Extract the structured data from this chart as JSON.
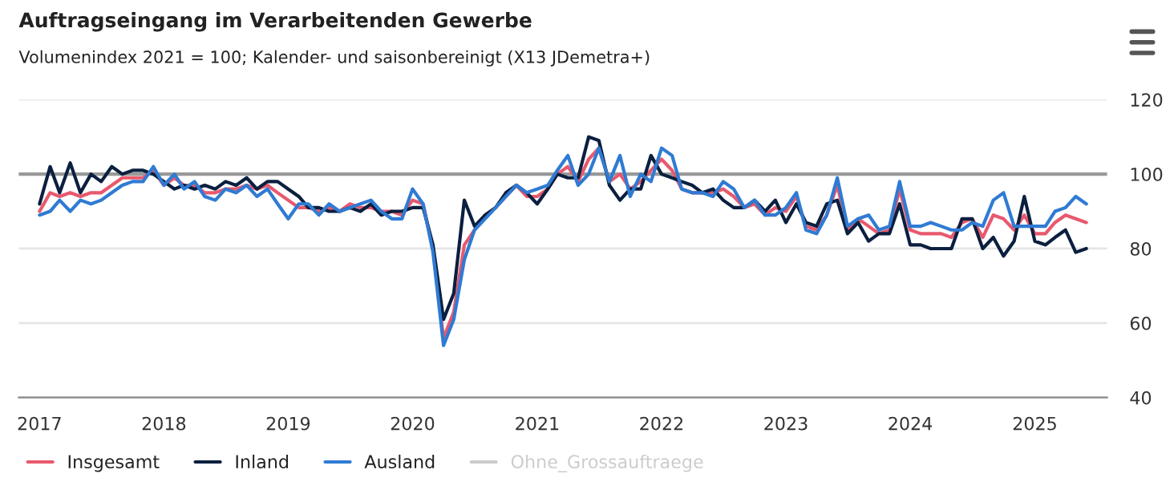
{
  "chart_data": {
    "type": "line",
    "title": "Auftragseingang im Verarbeitenden Gewerbe",
    "subtitle": "Volumenindex 2021 = 100; Kalender- und saisonbereinigt (X13 JDemetra+)",
    "x": [
      "2017-01",
      "2017-02",
      "2017-03",
      "2017-04",
      "2017-05",
      "2017-06",
      "2017-07",
      "2017-08",
      "2017-09",
      "2017-10",
      "2017-11",
      "2017-12",
      "2018-01",
      "2018-02",
      "2018-03",
      "2018-04",
      "2018-05",
      "2018-06",
      "2018-07",
      "2018-08",
      "2018-09",
      "2018-10",
      "2018-11",
      "2018-12",
      "2019-01",
      "2019-02",
      "2019-03",
      "2019-04",
      "2019-05",
      "2019-06",
      "2019-07",
      "2019-08",
      "2019-09",
      "2019-10",
      "2019-11",
      "2019-12",
      "2020-01",
      "2020-02",
      "2020-03",
      "2020-04",
      "2020-05",
      "2020-06",
      "2020-07",
      "2020-08",
      "2020-09",
      "2020-10",
      "2020-11",
      "2020-12",
      "2021-01",
      "2021-02",
      "2021-03",
      "2021-04",
      "2021-05",
      "2021-06",
      "2021-07",
      "2021-08",
      "2021-09",
      "2021-10",
      "2021-11",
      "2021-12",
      "2022-01",
      "2022-02",
      "2022-03",
      "2022-04",
      "2022-05",
      "2022-06",
      "2022-07",
      "2022-08",
      "2022-09",
      "2022-10",
      "2022-11",
      "2022-12",
      "2023-01",
      "2023-02",
      "2023-03",
      "2023-04",
      "2023-05",
      "2023-06",
      "2023-07",
      "2023-08",
      "2023-09",
      "2023-10",
      "2023-11",
      "2023-12",
      "2024-01",
      "2024-02",
      "2024-03",
      "2024-04",
      "2024-05",
      "2024-06",
      "2024-07",
      "2024-08",
      "2024-09",
      "2024-10",
      "2024-11",
      "2024-12",
      "2025-01",
      "2025-02",
      "2025-03",
      "2025-04",
      "2025-05",
      "2025-06"
    ],
    "xlim": [
      "2016-11",
      "2025-08"
    ],
    "xticks": [
      {
        "value": "2017-01",
        "label": "2017"
      },
      {
        "value": "2018-01",
        "label": "2018"
      },
      {
        "value": "2019-01",
        "label": "2019"
      },
      {
        "value": "2020-01",
        "label": "2020"
      },
      {
        "value": "2021-01",
        "label": "2021"
      },
      {
        "value": "2022-01",
        "label": "2022"
      },
      {
        "value": "2023-01",
        "label": "2023"
      },
      {
        "value": "2024-01",
        "label": "2024"
      },
      {
        "value": "2025-01",
        "label": "2025"
      }
    ],
    "ylim": [
      40,
      120
    ],
    "yticks": [
      40,
      60,
      80,
      100,
      120
    ],
    "grid": "y",
    "legend": "bottom",
    "marker": "none",
    "line_style": "solid",
    "ref_lines": [
      {
        "axis": "y",
        "value": 100,
        "color": "#999999"
      }
    ],
    "series": [
      {
        "name": "Insgesamt",
        "color": "#e8596e",
        "values": [
          90,
          95,
          94,
          95,
          94,
          95,
          95,
          97,
          99,
          99,
          99,
          101,
          97,
          99,
          97,
          97,
          95,
          95,
          96,
          96,
          97,
          96,
          97,
          95,
          93,
          91,
          91,
          90,
          91,
          90,
          92,
          91,
          91,
          90,
          90,
          89,
          93,
          92,
          80,
          56,
          63,
          81,
          85,
          89,
          91,
          94,
          97,
          94,
          94,
          96,
          100,
          102,
          98,
          104,
          107,
          98,
          100,
          96,
          98,
          101,
          104,
          101,
          96,
          95,
          95,
          95,
          96,
          94,
          91,
          92,
          89,
          91,
          90,
          94,
          86,
          85,
          89,
          97,
          85,
          88,
          86,
          84,
          85,
          96,
          85,
          84,
          84,
          84,
          83,
          87,
          88,
          83,
          89,
          88,
          85,
          89,
          84,
          84,
          87,
          89,
          88,
          87
        ]
      },
      {
        "name": "Inland",
        "color": "#0b1f3f",
        "values": [
          92,
          102,
          95,
          103,
          95,
          100,
          98,
          102,
          100,
          101,
          101,
          100,
          98,
          96,
          97,
          96,
          97,
          96,
          98,
          97,
          99,
          96,
          98,
          98,
          96,
          94,
          91,
          91,
          90,
          90,
          91,
          90,
          92,
          89,
          90,
          90,
          91,
          91,
          81,
          61,
          68,
          93,
          86,
          89,
          91,
          95,
          97,
          95,
          92,
          96,
          100,
          99,
          99,
          110,
          109,
          97,
          93,
          96,
          96,
          105,
          100,
          99,
          98,
          97,
          95,
          96,
          93,
          91,
          91,
          93,
          90,
          93,
          87,
          92,
          87,
          86,
          92,
          93,
          84,
          87,
          82,
          84,
          84,
          92,
          81,
          81,
          80,
          80,
          80,
          88,
          88,
          80,
          83,
          78,
          82,
          94,
          82,
          81,
          83,
          85,
          79,
          80
        ]
      },
      {
        "name": "Ausland",
        "color": "#2f7bd3",
        "values": [
          89,
          90,
          93,
          90,
          93,
          92,
          93,
          95,
          97,
          98,
          98,
          102,
          97,
          100,
          96,
          98,
          94,
          93,
          96,
          95,
          97,
          94,
          96,
          92,
          88,
          92,
          92,
          89,
          92,
          90,
          91,
          92,
          93,
          90,
          88,
          88,
          96,
          92,
          79,
          54,
          61,
          77,
          85,
          88,
          91,
          94,
          97,
          95,
          96,
          97,
          101,
          105,
          97,
          100,
          107,
          98,
          105,
          94,
          100,
          98,
          107,
          105,
          96,
          95,
          95,
          94,
          98,
          96,
          91,
          93,
          89,
          89,
          91,
          95,
          85,
          84,
          89,
          99,
          86,
          88,
          89,
          85,
          86,
          98,
          86,
          86,
          87,
          86,
          85,
          85,
          87,
          86,
          93,
          95,
          86,
          86,
          86,
          86,
          90,
          91,
          94,
          92
        ]
      },
      {
        "name": "Ohne_Grossauftraege",
        "color": "#cccccc",
        "values": [
          null,
          null,
          null,
          null,
          null,
          null,
          null,
          null,
          null,
          null,
          null,
          null,
          null,
          null,
          null,
          null,
          null,
          null,
          null,
          null,
          null,
          null,
          null,
          null,
          null,
          null,
          null,
          null,
          null,
          null,
          null,
          null,
          null,
          null,
          null,
          null,
          null,
          null,
          null,
          null,
          null,
          null,
          null,
          null,
          null,
          null,
          null,
          null,
          null,
          null,
          null,
          null,
          null,
          null,
          null,
          null,
          null,
          null,
          null,
          null,
          null,
          null,
          null,
          null,
          null,
          null,
          null,
          null,
          null,
          null,
          null,
          null,
          null,
          null,
          null,
          null,
          null,
          null,
          null,
          null,
          null,
          null,
          null,
          null,
          null,
          null,
          null,
          null,
          null,
          null,
          null,
          null,
          null,
          null,
          null,
          null,
          null,
          null,
          null,
          null,
          null,
          null
        ]
      }
    ]
  }
}
